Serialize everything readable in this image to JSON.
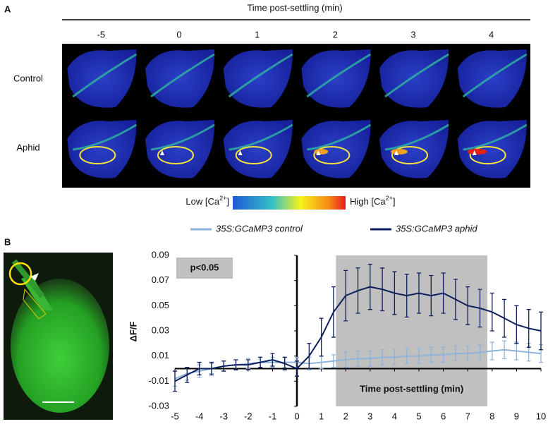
{
  "panel_a": {
    "label": "A",
    "title": "Time post-settling (min)",
    "time_labels": [
      "-5",
      "0",
      "1",
      "2",
      "3",
      "4"
    ],
    "row_labels": [
      "Control",
      "Aphid"
    ],
    "colorbar": {
      "low": {
        "prefix": "Low [Ca",
        "sup": "2+",
        "suffix": "]"
      },
      "high": {
        "prefix": "High [Ca",
        "sup": "2+",
        "suffix": "]"
      }
    }
  },
  "panel_b_label": "B",
  "chart_data": {
    "type": "line",
    "y_label": "ΔF/F",
    "annotation": "p<0.05",
    "highlight_label": "Time post-settling (min)",
    "highlight_x": [
      1.6,
      7.8
    ],
    "x": [
      -5,
      -4.5,
      -4,
      -3.5,
      -3,
      -2.5,
      -2,
      -1.5,
      -1,
      -0.5,
      0,
      0.5,
      1,
      1.5,
      2,
      2.5,
      3,
      3.5,
      4,
      4.5,
      5,
      5.5,
      6,
      6.5,
      7,
      7.5,
      8,
      8.5,
      9,
      9.5,
      10
    ],
    "series": [
      {
        "name": "35S:GCaMP3 control",
        "color": "#8fb3d9",
        "values": [
          -0.008,
          -0.004,
          -0.002,
          0.0,
          0.002,
          0.003,
          0.004,
          0.005,
          0.005,
          0.005,
          0.005,
          0.004,
          0.005,
          0.006,
          0.007,
          0.008,
          0.008,
          0.009,
          0.009,
          0.01,
          0.01,
          0.011,
          0.011,
          0.012,
          0.012,
          0.013,
          0.014,
          0.015,
          0.014,
          0.013,
          0.012
        ],
        "errors": [
          0.006,
          0.005,
          0.005,
          0.004,
          0.004,
          0.004,
          0.004,
          0.004,
          0.004,
          0.004,
          0.004,
          0.005,
          0.005,
          0.005,
          0.006,
          0.006,
          0.006,
          0.006,
          0.006,
          0.006,
          0.006,
          0.006,
          0.006,
          0.006,
          0.006,
          0.006,
          0.007,
          0.007,
          0.007,
          0.007,
          0.007
        ]
      },
      {
        "name": "35S:GCaMP3 aphid",
        "color": "#0d1f5c",
        "values": [
          -0.01,
          -0.005,
          0.0,
          0.0,
          0.002,
          0.003,
          0.003,
          0.005,
          0.007,
          0.004,
          0.0,
          0.01,
          0.025,
          0.045,
          0.058,
          0.062,
          0.065,
          0.063,
          0.06,
          0.058,
          0.06,
          0.058,
          0.06,
          0.055,
          0.05,
          0.048,
          0.045,
          0.04,
          0.035,
          0.032,
          0.03
        ],
        "errors": [
          0.008,
          0.006,
          0.005,
          0.005,
          0.004,
          0.004,
          0.004,
          0.004,
          0.005,
          0.005,
          0.006,
          0.01,
          0.015,
          0.02,
          0.02,
          0.018,
          0.018,
          0.017,
          0.017,
          0.017,
          0.016,
          0.016,
          0.016,
          0.016,
          0.015,
          0.015,
          0.015,
          0.015,
          0.015,
          0.015,
          0.015
        ]
      }
    ],
    "xlim": [
      -5,
      10
    ],
    "ylim": [
      -0.03,
      0.09
    ],
    "xticks": [
      -5,
      -4,
      -3,
      -2,
      -1,
      0,
      1,
      2,
      3,
      4,
      5,
      6,
      7,
      8,
      9,
      10
    ],
    "yticks": [
      0.09,
      0.07,
      0.05,
      0.03,
      0.01,
      -0.01,
      -0.03
    ]
  }
}
